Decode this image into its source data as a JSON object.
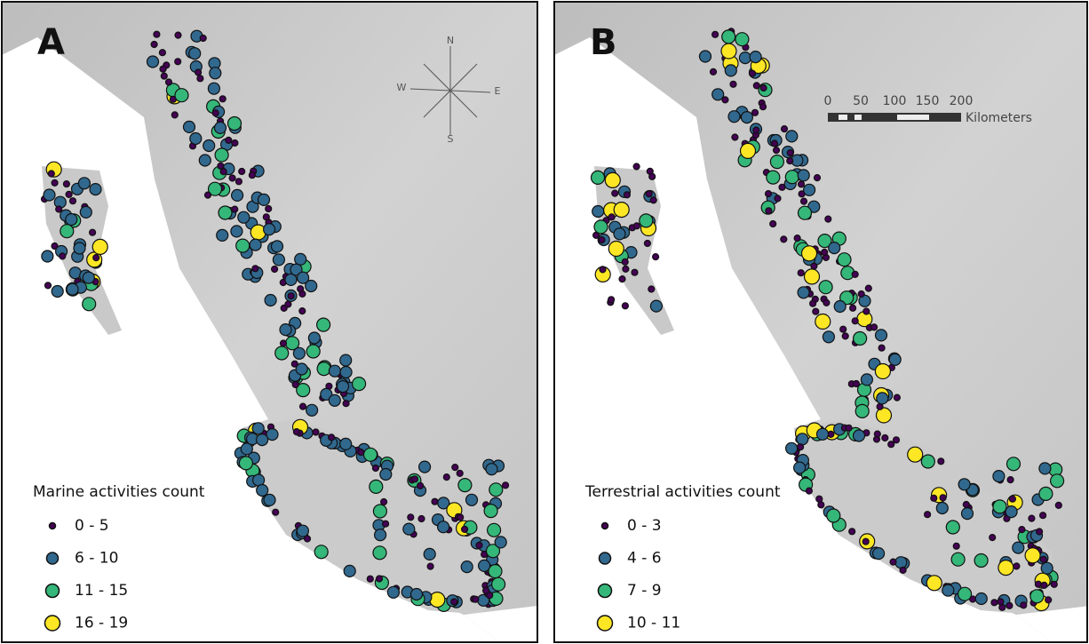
{
  "panels": [
    {
      "label": "A",
      "compass": {
        "north": "N",
        "south": "S",
        "east": "E",
        "west": "W"
      },
      "legend": {
        "title": "Marine activities count",
        "items": [
          "0 - 5",
          "6 - 10",
          "11 - 15",
          "16 - 19"
        ]
      }
    },
    {
      "label": "B",
      "scale_bar": {
        "ticks": [
          "0",
          "50",
          "100",
          "150",
          "200"
        ],
        "unit": "Kilometers"
      },
      "legend": {
        "title": "Terrestrial activities count",
        "items": [
          "0 - 3",
          "4 - 6",
          "7 - 9",
          "10 - 11"
        ]
      }
    }
  ]
}
